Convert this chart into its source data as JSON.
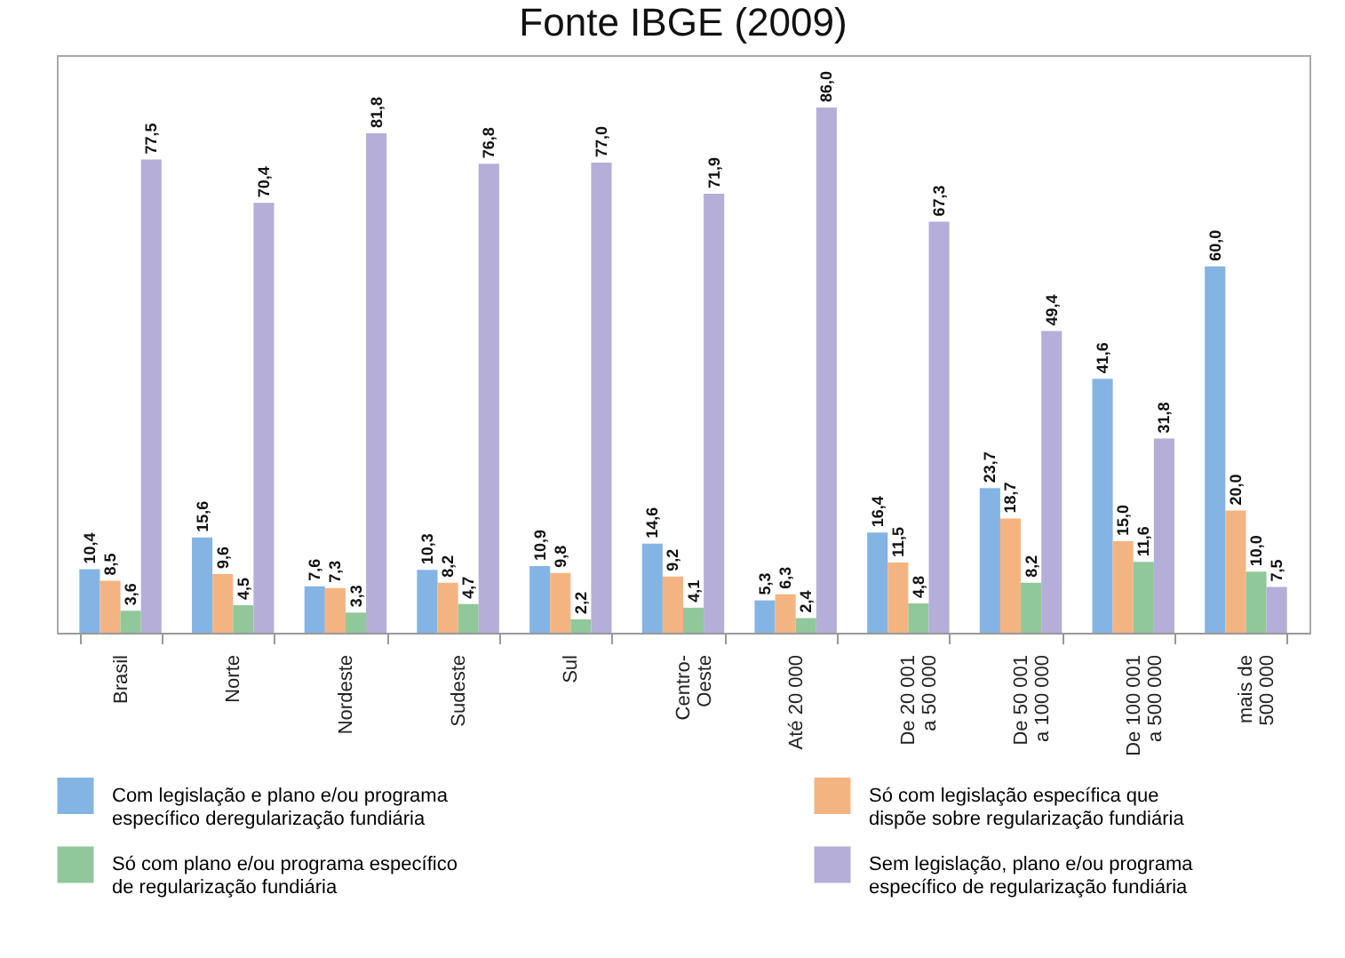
{
  "chart_data": {
    "type": "bar",
    "title": "Fonte IBGE (2009)",
    "categories": [
      "Brasil",
      "Norte",
      "Nordeste",
      "Sudeste",
      "Sul",
      "Centro-Oeste",
      "Até 20 000",
      "De 20 001 a 50 000",
      "De 50 001 a 100 000",
      "De 100 001 a 500 000",
      "mais de 500 000"
    ],
    "series": [
      {
        "name": "Com legislação e plano e/ou programa específico deregularização fundiária",
        "color": "#84b4e4",
        "values": [
          10.4,
          15.6,
          7.6,
          10.3,
          10.9,
          14.6,
          5.3,
          16.4,
          23.7,
          41.6,
          60.0
        ],
        "value_labels": [
          "10,4",
          "15,6",
          "7,6",
          "10,3",
          "10,9",
          "14,6",
          "5,3",
          "16,4",
          "23,7",
          "41,6",
          "60,0"
        ]
      },
      {
        "name": "Só com legislação específica que dispõe sobre regularização fundiária",
        "color": "#f4b482",
        "values": [
          8.5,
          9.6,
          7.3,
          8.2,
          9.8,
          9.2,
          6.3,
          11.5,
          18.7,
          15.0,
          20.0
        ],
        "value_labels": [
          "8,5",
          "9,6",
          "7,3",
          "8,2",
          "9,8",
          "9,2",
          "6,3",
          "11,5",
          "18,7",
          "15,0",
          "20,0"
        ]
      },
      {
        "name": "Só com plano e/ou programa específico de regularização fundiária",
        "color": "#90c89a",
        "values": [
          3.6,
          4.5,
          3.3,
          4.7,
          2.2,
          4.1,
          2.4,
          4.8,
          8.2,
          11.6,
          10.0
        ],
        "value_labels": [
          "3,6",
          "4,5",
          "3,3",
          "4,7",
          "2,2",
          "4,1",
          "2,4",
          "4,8",
          "8,2",
          "11,6",
          "10,0"
        ]
      },
      {
        "name": "Sem legislação, plano e/ou programa específico de regularização fundiária",
        "color": "#b4aed8",
        "values": [
          77.5,
          70.4,
          81.8,
          76.8,
          77.0,
          71.9,
          86.0,
          67.3,
          49.4,
          31.8,
          7.5
        ],
        "value_labels": [
          "77,5",
          "70,4",
          "81,8",
          "76,8",
          "77,0",
          "71,9",
          "86,0",
          "67,3",
          "49,4",
          "31,8",
          "7,5"
        ]
      }
    ],
    "legend": "bottom"
  }
}
